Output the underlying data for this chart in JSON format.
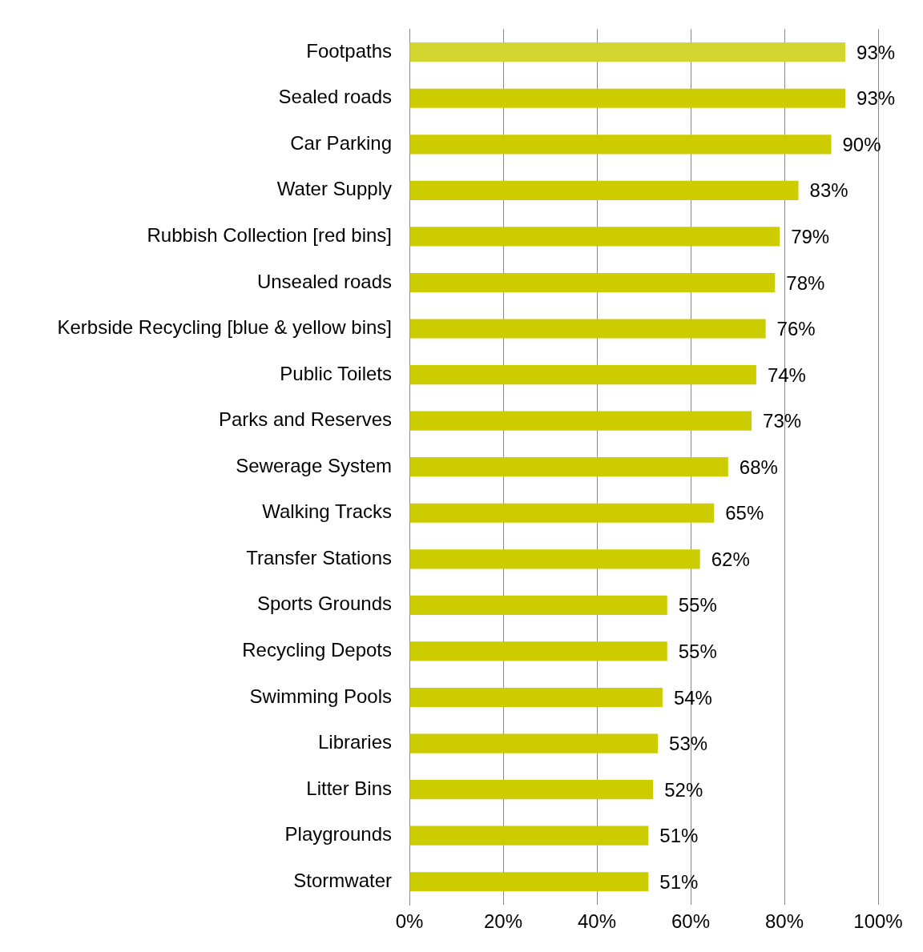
{
  "chart_data": {
    "type": "bar",
    "orientation": "horizontal",
    "categories": [
      "Footpaths",
      "Sealed roads",
      "Car Parking",
      "Water Supply",
      "Rubbish Collection [red bins]",
      "Unsealed roads",
      "Kerbside Recycling [blue & yellow bins]",
      "Public Toilets",
      "Parks and Reserves",
      "Sewerage System",
      "Walking Tracks",
      "Transfer Stations",
      "Sports Grounds",
      "Recycling Depots",
      "Swimming Pools",
      "Libraries",
      "Litter Bins",
      "Playgrounds",
      "Stormwater"
    ],
    "values": [
      93,
      93,
      90,
      83,
      79,
      78,
      76,
      74,
      73,
      68,
      65,
      62,
      55,
      55,
      54,
      53,
      52,
      51,
      51
    ],
    "colors": [
      "#d3d62e",
      "#cccc00",
      "#cccc00",
      "#cccc00",
      "#cccc00",
      "#cccc00",
      "#cccc00",
      "#cccc00",
      "#cccc00",
      "#cccc00",
      "#cccc00",
      "#cccc00",
      "#cccc00",
      "#cccc00",
      "#cccc00",
      "#cccc00",
      "#cccc00",
      "#cccc00",
      "#cccc00"
    ],
    "value_labels": [
      "93%",
      "93%",
      "90%",
      "83%",
      "79%",
      "78%",
      "76%",
      "74%",
      "73%",
      "68%",
      "65%",
      "62%",
      "55%",
      "55%",
      "54%",
      "53%",
      "52%",
      "51%",
      "51%"
    ],
    "xlim": [
      0,
      100
    ],
    "xticks": [
      {
        "value": 0,
        "label": "0%"
      },
      {
        "value": 20,
        "label": "20%"
      },
      {
        "value": 40,
        "label": "40%"
      },
      {
        "value": 60,
        "label": "60%"
      },
      {
        "value": 80,
        "label": "80%"
      },
      {
        "value": 100,
        "label": "100%"
      }
    ],
    "grid": "x",
    "legend": false
  }
}
